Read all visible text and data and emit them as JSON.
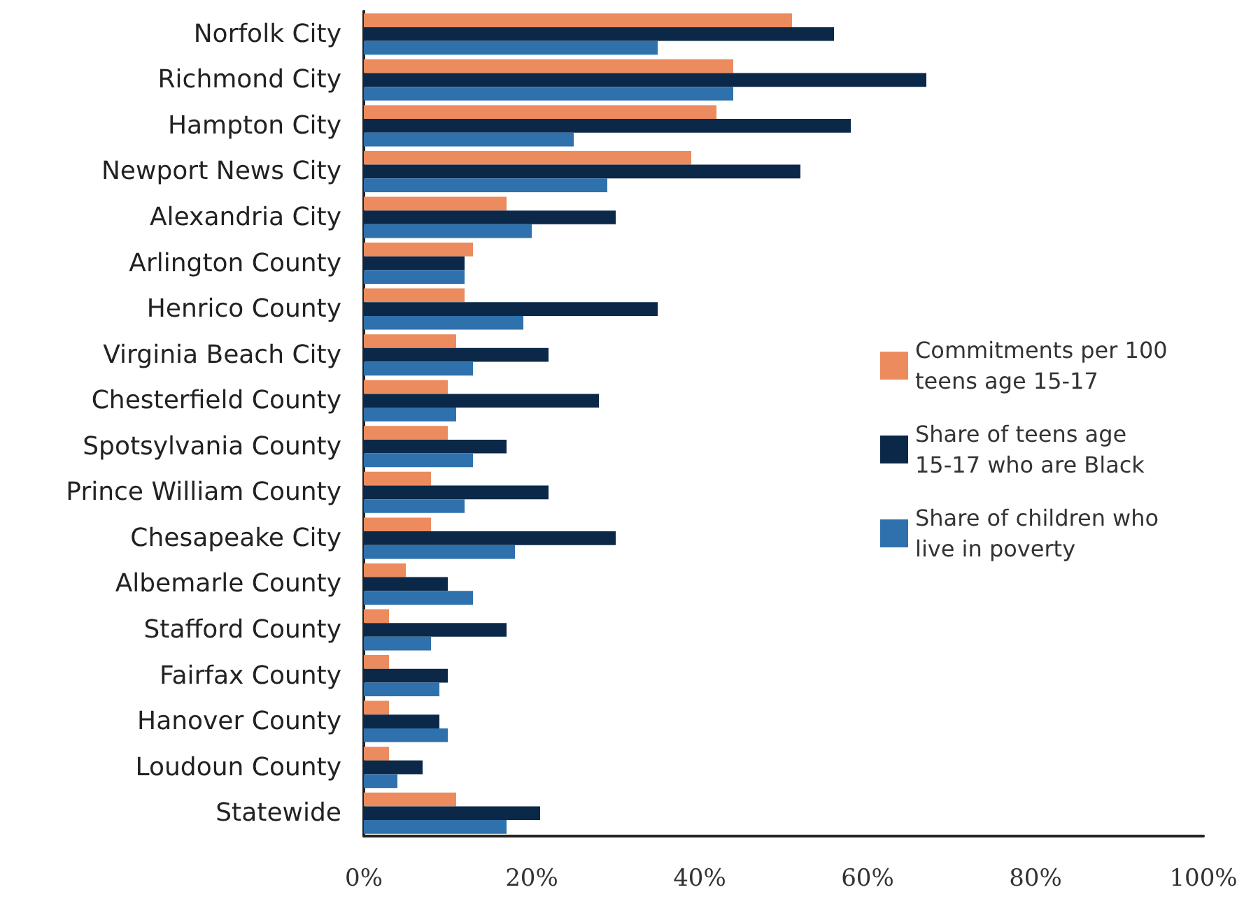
{
  "chart_data": {
    "type": "bar",
    "orientation": "horizontal",
    "categories": [
      "Norfolk City",
      "Richmond City",
      "Hampton City",
      "Newport News City",
      "Alexandria City",
      "Arlington County",
      "Henrico County",
      "Virginia Beach City",
      "Chesterfield County",
      "Spotsylvania County",
      "Prince William County",
      "Chesapeake City",
      "Albemarle County",
      "Stafford County",
      "Fairfax County",
      "Hanover County",
      "Loudoun County",
      "Statewide"
    ],
    "series": [
      {
        "name": "Commitments per 100 teens age 15-17",
        "color": "#ec8b5e",
        "values": [
          51,
          44,
          42,
          39,
          17,
          13,
          12,
          11,
          10,
          10,
          8,
          8,
          5,
          3,
          3,
          3,
          3,
          11
        ]
      },
      {
        "name": "Share of teens age 15-17 who are Black",
        "color": "#0b2848",
        "values": [
          56,
          67,
          58,
          52,
          30,
          12,
          35,
          22,
          28,
          17,
          22,
          30,
          10,
          17,
          10,
          9,
          7,
          21
        ]
      },
      {
        "name": "Share of children who live in poverty",
        "color": "#2e71ad",
        "values": [
          35,
          44,
          25,
          29,
          20,
          12,
          19,
          13,
          11,
          13,
          12,
          18,
          13,
          8,
          9,
          10,
          4,
          17
        ]
      }
    ],
    "xlim": [
      0,
      100
    ],
    "xticks": [
      {
        "value": 0,
        "label": "0%"
      },
      {
        "value": 20,
        "label": "20%"
      },
      {
        "value": 40,
        "label": "40%"
      },
      {
        "value": 60,
        "label": "60%"
      },
      {
        "value": 80,
        "label": "80%"
      },
      {
        "value": 100,
        "label": "100%"
      }
    ],
    "grid": false,
    "legend": "right"
  }
}
